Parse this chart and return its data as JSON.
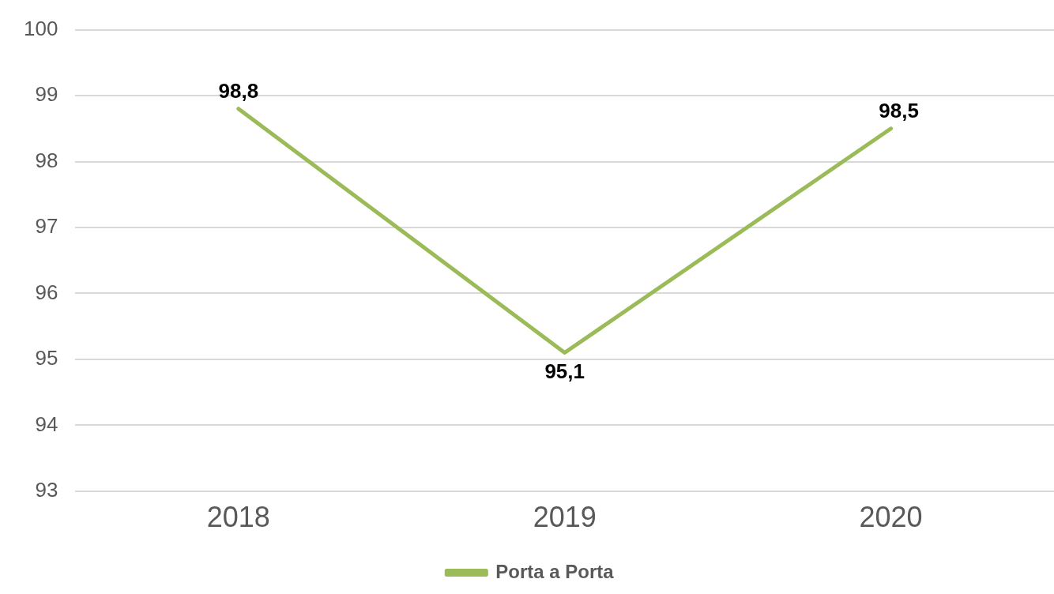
{
  "chart_data": {
    "type": "line",
    "categories": [
      "2018",
      "2019",
      "2020"
    ],
    "series": [
      {
        "name": "Porta a Porta",
        "color": "#9bbb59",
        "values": [
          98.8,
          95.1,
          98.5
        ],
        "value_labels": [
          "98,8",
          "95,1",
          "98,5"
        ]
      }
    ],
    "ylim": [
      93,
      100
    ],
    "yticks": [
      93,
      94,
      95,
      96,
      97,
      98,
      99,
      100
    ],
    "grid": "y",
    "legend": "bottom",
    "marker": "none",
    "line_style": "solid"
  }
}
